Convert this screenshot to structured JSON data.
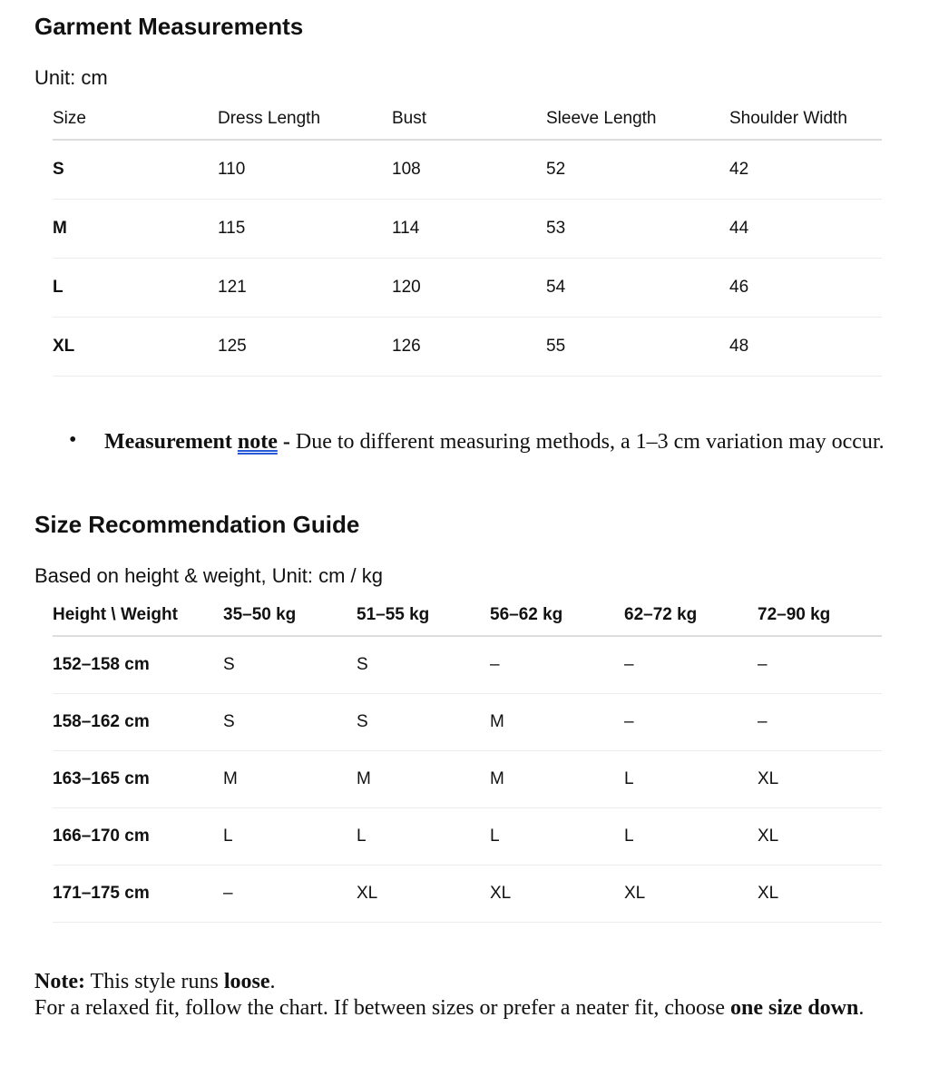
{
  "garment": {
    "title": "Garment Measurements",
    "unit": "Unit: cm",
    "headers": [
      "Size",
      "Dress Length",
      "Bust",
      "Sleeve Length",
      "Shoulder Width"
    ],
    "rows": [
      [
        "S",
        "110",
        "108",
        "52",
        "42"
      ],
      [
        "M",
        "115",
        "114",
        "53",
        "44"
      ],
      [
        "L",
        "121",
        "120",
        "54",
        "46"
      ],
      [
        "XL",
        "125",
        "126",
        "55",
        "48"
      ]
    ]
  },
  "note_bullet": {
    "bold": "Measurement ",
    "bold_underlined": "note",
    "dash": " - ",
    "text": "Due to different measuring methods, a 1–3 cm variation may occur."
  },
  "guide": {
    "title": "Size Recommendation Guide",
    "unit": "Based on height & weight, Unit: cm / kg",
    "headers": [
      "Height \\ Weight",
      "35–50 kg",
      "51–55 kg",
      "56–62 kg",
      "62–72 kg",
      "72–90 kg"
    ],
    "rows": [
      [
        "152–158 cm",
        "S",
        "S",
        "–",
        "–",
        "–"
      ],
      [
        "158–162 cm",
        "S",
        "S",
        "M",
        "–",
        "–"
      ],
      [
        "163–165 cm",
        "M",
        "M",
        "M",
        "L",
        "XL"
      ],
      [
        "166–170 cm",
        "L",
        "L",
        "L",
        "L",
        "XL"
      ],
      [
        "171–175 cm",
        "–",
        "XL",
        "XL",
        "XL",
        "XL"
      ]
    ]
  },
  "footer": {
    "note_label": "Note:",
    "note_text": " This style runs ",
    "note_bold": "loose",
    "note_end": ".",
    "line2": "For a relaxed fit, follow the chart. If between sizes or prefer a neater fit, choose ",
    "line2_bold": "one size down",
    "line2_end": "."
  }
}
